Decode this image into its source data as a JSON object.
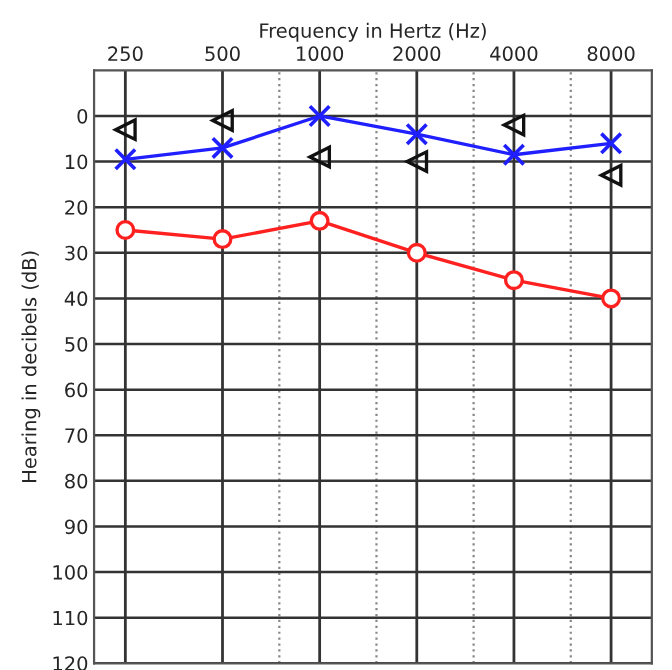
{
  "chart_data": {
    "type": "line",
    "xlabel": "Frequency in Hertz (Hz)",
    "ylabel": "Hearing in decibels (dB)",
    "log": "x",
    "xlim": [
      200,
      10700
    ],
    "xticks": [
      250,
      500,
      {
        "value": 750,
        "label": null
      },
      1000,
      {
        "value": 1500,
        "label": null
      },
      2000,
      {
        "value": 3000,
        "label": null
      },
      4000,
      {
        "value": 6000,
        "label": null
      },
      8000
    ],
    "ylim": [
      120,
      -10
    ],
    "yticks": [
      0,
      10,
      20,
      30,
      40,
      50,
      60,
      70,
      80,
      90,
      100,
      110,
      120
    ],
    "grid": true,
    "x": [
      250,
      500,
      1000,
      2000,
      4000,
      8000
    ],
    "series": [
      {
        "color": "#1f1fff",
        "marker": "cross",
        "values": [
          9.5,
          7,
          0,
          4,
          8.5,
          6
        ]
      },
      {
        "color": "#ff2020",
        "marker": "circle",
        "values": [
          25,
          27,
          23,
          30,
          36,
          40
        ]
      },
      {
        "type": "scatter",
        "color": "#111111",
        "marker": "triangle",
        "values": [
          3,
          1,
          9,
          10,
          2,
          13
        ]
      }
    ]
  }
}
